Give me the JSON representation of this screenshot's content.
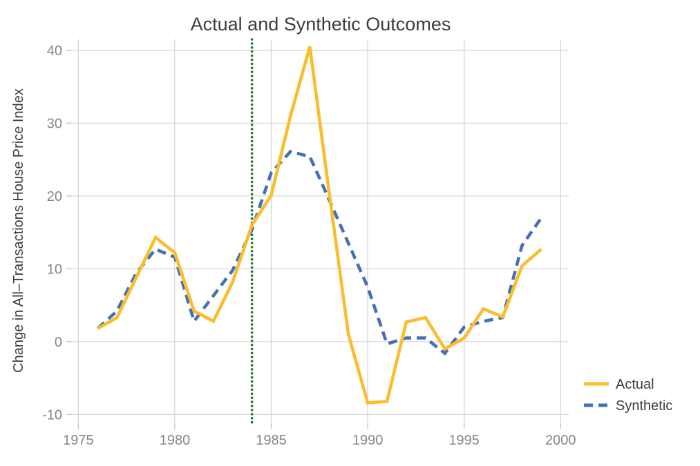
{
  "title": "Actual and Synthetic Outcomes",
  "y_axis_label": "Change in All–Transactions House Price Index",
  "colors": {
    "actual": "#FBBC2D",
    "synthetic": "#4571B4",
    "treatment_line": "#1B7A3A",
    "gridline": "#D5D5D5",
    "tick_mark": "#C4C4C4",
    "tick_label": "#868686",
    "text": "#3D3D3D",
    "background": "#FFFFFF"
  },
  "legend": {
    "position": "right",
    "items": [
      {
        "label": "Actual",
        "style": "solid",
        "color": "#FBBC2D"
      },
      {
        "label": "Synthetic",
        "style": "dashed",
        "color": "#4571B4"
      }
    ]
  },
  "chart_data": {
    "type": "line",
    "title": "Actual and Synthetic Outcomes",
    "xlabel": "",
    "ylabel": "Change in All–Transactions House Price Index",
    "x": [
      1976,
      1977,
      1978,
      1979,
      1980,
      1981,
      1982,
      1983,
      1984,
      1985,
      1986,
      1987,
      1988,
      1989,
      1990,
      1991,
      1992,
      1993,
      1994,
      1995,
      1996,
      1997,
      1998,
      1999
    ],
    "series": [
      {
        "name": "Actual",
        "color": "#FBBC2D",
        "style": "solid",
        "values": [
          1.8,
          3.3,
          8.8,
          14.3,
          12.2,
          4.2,
          2.8,
          8.2,
          16.0,
          20.1,
          31.0,
          40.5,
          20.5,
          1.0,
          -8.4,
          -8.2,
          2.7,
          3.3,
          -1.0,
          0.5,
          4.5,
          3.4,
          10.4,
          12.7
        ]
      },
      {
        "name": "Synthetic",
        "color": "#4571B4",
        "style": "dashed",
        "values": [
          1.8,
          4.2,
          9.4,
          12.7,
          11.6,
          2.8,
          6.3,
          9.8,
          15.4,
          23.2,
          26.1,
          25.4,
          19.5,
          13.5,
          7.5,
          -0.3,
          0.5,
          0.5,
          -1.6,
          2.0,
          2.8,
          3.3,
          13.2,
          17.0
        ]
      }
    ],
    "vline": {
      "x": 1984,
      "color": "#1B7A3A",
      "style": "dotted"
    },
    "x_ticks": [
      1975,
      1980,
      1985,
      1990,
      1995,
      2000
    ],
    "y_ticks": [
      -10,
      0,
      10,
      20,
      30,
      40
    ],
    "xlim": [
      1974.7,
      2000.42
    ],
    "ylim": [
      -11.1,
      41.5
    ],
    "grid": true,
    "legend_position": "right"
  }
}
